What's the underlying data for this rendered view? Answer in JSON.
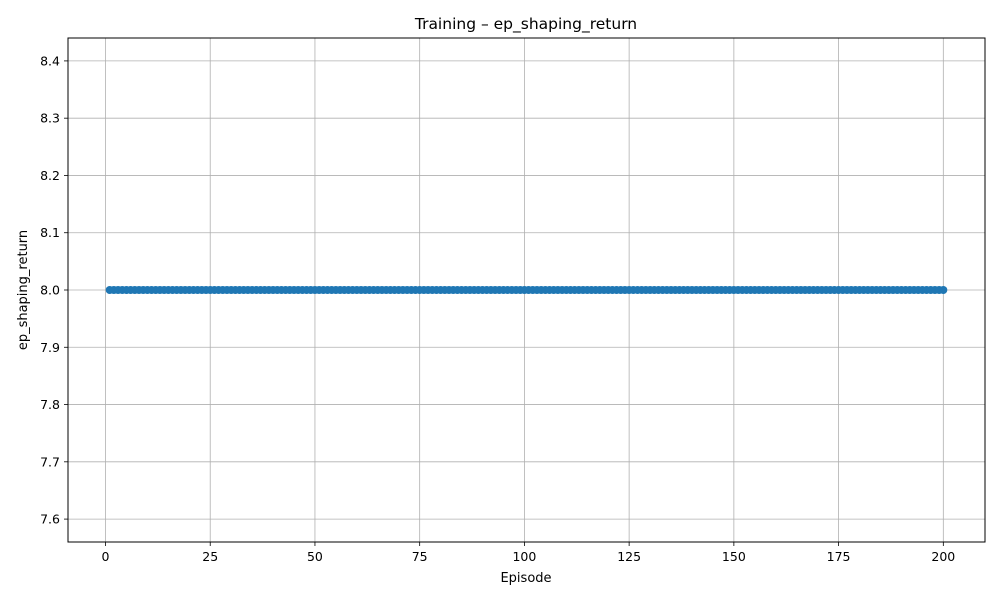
{
  "chart_data": {
    "type": "line",
    "title": "Training – ep_shaping_return",
    "xlabel": "Episode",
    "ylabel": "ep_shaping_return",
    "xlim": [
      -8.95,
      209.95
    ],
    "ylim": [
      7.56,
      8.44
    ],
    "xticks": [
      0,
      25,
      50,
      75,
      100,
      125,
      150,
      175,
      200
    ],
    "yticks": [
      7.6,
      7.7,
      7.8,
      7.9,
      8.0,
      8.1,
      8.2,
      8.3,
      8.4
    ],
    "ytick_labels": [
      "7.6",
      "7.7",
      "7.8",
      "7.9",
      "8.0",
      "8.1",
      "8.2",
      "8.3",
      "8.4"
    ],
    "grid": true,
    "marker": "circle",
    "color": "#1f77b4",
    "series": [
      {
        "x_start": 1,
        "x_end": 200,
        "x_step": 1,
        "value": 8.0
      }
    ]
  }
}
